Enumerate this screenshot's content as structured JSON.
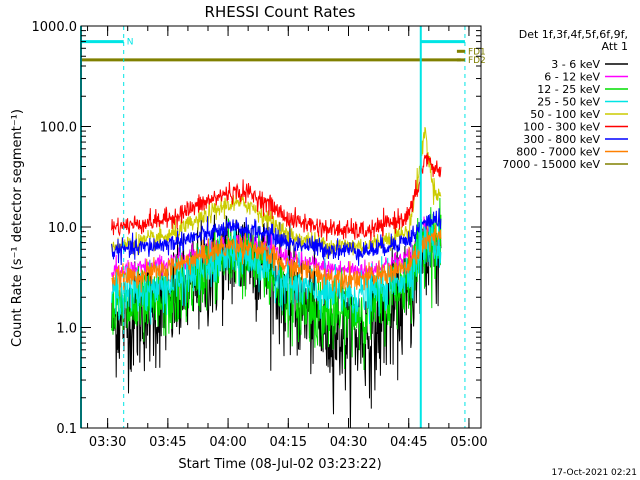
{
  "chart_data": {
    "type": "line",
    "title": "RHESSI Count Rates",
    "xlabel": "Start Time (08-Jul-02 03:23:22)",
    "ylabel": "Count Rate (s⁻¹ detector segment⁻¹)",
    "yscale": "log",
    "ylim": [
      0.1,
      1000
    ],
    "xlim": [
      "03:23:22",
      "05:03:00"
    ],
    "x_ticks": [
      "03:30",
      "03:45",
      "04:00",
      "04:15",
      "04:30",
      "04:45",
      "05:00"
    ],
    "y_ticks": [
      "0.1",
      "1.0",
      "10.0",
      "100.0",
      "1000.0"
    ],
    "legend_header": [
      "Det 1f,3f,4f,5f,6f,9f,",
      "Att 1"
    ],
    "series": [
      {
        "name": "3 - 6 keV",
        "color": "#000000",
        "x": [
          "03:31",
          "03:36",
          "03:45",
          "03:55",
          "04:00",
          "04:05",
          "04:10",
          "04:15",
          "04:25",
          "04:35",
          "04:45",
          "04:49",
          "04:52",
          "04:53"
        ],
        "values": [
          1.2,
          1.2,
          1.6,
          3.5,
          5.0,
          5.3,
          3.8,
          2.0,
          0.9,
          0.8,
          2.0,
          5.0,
          6.5,
          6.0
        ]
      },
      {
        "name": "6 - 12 keV",
        "color": "#ff00ff",
        "x": [
          "03:31",
          "03:36",
          "03:45",
          "03:55",
          "04:00",
          "04:05",
          "04:10",
          "04:15",
          "04:25",
          "04:35",
          "04:45",
          "04:49",
          "04:52",
          "04:53"
        ],
        "values": [
          3.6,
          3.7,
          4.3,
          6.0,
          7.0,
          7.2,
          6.2,
          4.8,
          3.8,
          3.7,
          5.0,
          10.0,
          7.5,
          7.0
        ]
      },
      {
        "name": "12 - 25 keV",
        "color": "#00dd00",
        "x": [
          "03:31",
          "03:36",
          "03:45",
          "03:55",
          "04:00",
          "04:05",
          "04:10",
          "04:15",
          "04:25",
          "04:35",
          "04:45",
          "04:49",
          "04:52",
          "04:53"
        ],
        "values": [
          1.5,
          1.5,
          1.8,
          3.8,
          5.0,
          4.8,
          3.4,
          2.0,
          1.3,
          1.4,
          3.0,
          8.0,
          7.0,
          6.5
        ]
      },
      {
        "name": "25 - 50 keV",
        "color": "#00e5e5",
        "x": [
          "03:31",
          "03:36",
          "03:45",
          "03:55",
          "04:00",
          "04:05",
          "04:10",
          "04:15",
          "04:25",
          "04:35",
          "04:45",
          "04:49",
          "04:52",
          "04:53"
        ],
        "values": [
          2.2,
          2.2,
          2.6,
          4.0,
          5.0,
          5.0,
          4.0,
          2.7,
          2.1,
          2.1,
          3.5,
          7.0,
          6.5,
          6.0
        ]
      },
      {
        "name": "50 - 100 keV",
        "color": "#cccc00",
        "x": [
          "03:31",
          "03:36",
          "03:45",
          "03:55",
          "04:00",
          "04:05",
          "04:10",
          "04:15",
          "04:25",
          "04:35",
          "04:45",
          "04:48",
          "04:49",
          "04:51",
          "04:53"
        ],
        "values": [
          6.5,
          6.8,
          8.0,
          13.0,
          17.0,
          17.0,
          12.0,
          8.0,
          6.5,
          6.5,
          9.0,
          45.0,
          95.0,
          25.0,
          20.0
        ]
      },
      {
        "name": "100 - 300 keV",
        "color": "#ff0000",
        "x": [
          "03:31",
          "03:36",
          "03:45",
          "03:55",
          "04:00",
          "04:05",
          "04:10",
          "04:15",
          "04:25",
          "04:35",
          "04:45",
          "04:48",
          "04:49",
          "04:51",
          "04:53"
        ],
        "values": [
          10.0,
          10.5,
          12.0,
          18.0,
          22.0,
          22.0,
          17.0,
          12.0,
          9.5,
          9.0,
          13.0,
          30.0,
          50.0,
          40.0,
          35.0
        ]
      },
      {
        "name": "300 - 800 keV",
        "color": "#0000ff",
        "x": [
          "03:31",
          "03:36",
          "03:45",
          "03:55",
          "04:00",
          "04:05",
          "04:10",
          "04:15",
          "04:25",
          "04:35",
          "04:45",
          "04:49",
          "04:52",
          "04:53"
        ],
        "values": [
          5.8,
          6.0,
          6.8,
          8.5,
          9.5,
          9.5,
          8.5,
          7.0,
          6.0,
          5.8,
          7.5,
          11.0,
          12.0,
          12.0
        ]
      },
      {
        "name": "800 - 7000 keV",
        "color": "#ff8000",
        "x": [
          "03:31",
          "03:36",
          "03:45",
          "03:55",
          "04:00",
          "04:05",
          "04:10",
          "04:15",
          "04:25",
          "04:35",
          "04:45",
          "04:49",
          "04:52",
          "04:53"
        ],
        "values": [
          3.0,
          3.2,
          3.8,
          5.5,
          6.5,
          6.5,
          5.2,
          4.0,
          3.2,
          3.1,
          4.0,
          7.0,
          8.0,
          8.0
        ]
      },
      {
        "name": "7000 - 15000 keV",
        "color": "#808000",
        "x": [
          "03:23:22",
          "04:58"
        ],
        "values": [
          460,
          460
        ]
      }
    ],
    "annotations": [
      {
        "label": "N",
        "color": "#00e5e5",
        "x_start": "03:23:22",
        "x_end": "03:34",
        "level": 700
      },
      {
        "label": "FD1",
        "color": "#808000",
        "x_start": "04:57",
        "x_end": "04:59",
        "level": 560
      },
      {
        "label": "FD2",
        "color": "#808000",
        "x_start": "04:57",
        "x_end": "04:59",
        "level": 460
      },
      {
        "label": "",
        "color": "#00e5e5",
        "x_start": "04:48",
        "x_end": "04:59",
        "level": 700
      }
    ],
    "vertical_markers": [
      {
        "x": "03:23:22",
        "color": "#00e5e5",
        "style": "solid"
      },
      {
        "x": "03:34",
        "color": "#00e5e5",
        "style": "dashed"
      },
      {
        "x": "04:48",
        "color": "#00e5e5",
        "style": "solid"
      },
      {
        "x": "04:59",
        "color": "#00e5e5",
        "style": "dashed"
      }
    ],
    "footer": "17-Oct-2021 02:21"
  }
}
